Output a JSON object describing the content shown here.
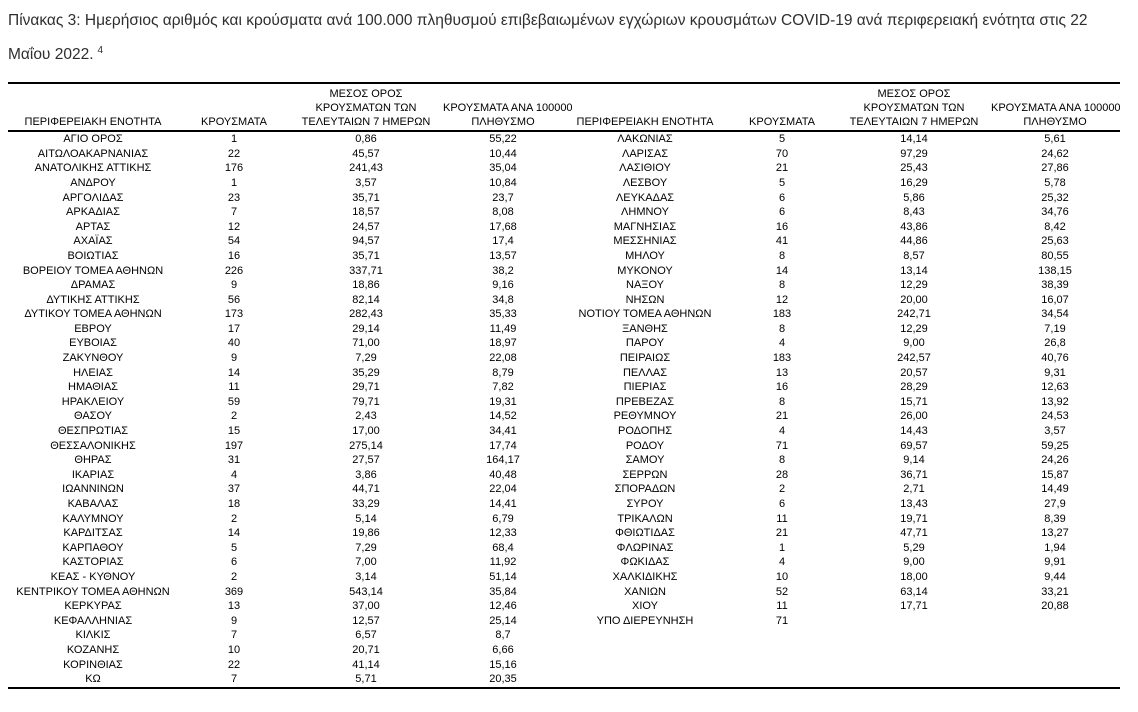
{
  "caption": {
    "text": "Πίνακας 3:  Ημερήσιος αριθμός και κρούσματα ανά 100.000 πληθυσμού επιβεβαιωμένων εγχώριων κρουσμάτων COVID-19 ανά περιφερειακή ενότητα στις 22 Μαΐου 2022.",
    "footnote_ref": "4"
  },
  "colors": {
    "background": "#ffffff",
    "text": "#000000",
    "caption_text": "#2e2e2e",
    "rule": "#000000"
  },
  "table": {
    "header": {
      "columns": [
        {
          "id": "region-left",
          "lines": [
            "ΠΕΡΙΦΕΡΕΙΑΚΗ ΕΝΟΤΗΤΑ"
          ]
        },
        {
          "id": "cases-left",
          "lines": [
            "ΚΡΟΥΣΜΑΤΑ"
          ]
        },
        {
          "id": "avg7-left",
          "lines": [
            "ΜΕΣΟΣ ΟΡΟΣ",
            "ΚΡΟΥΣΜΑΤΩΝ ΤΩΝ",
            "ΤΕΛΕΥΤΑΙΩΝ 7 ΗΜΕΡΩΝ"
          ]
        },
        {
          "id": "per100k-left",
          "lines": [
            "ΚΡΟΥΣΜΑΤΑ ΑΝΑ 100000",
            "ΠΛΗΘΥΣΜΟ"
          ]
        },
        {
          "id": "region-right",
          "lines": [
            "ΠΕΡΙΦΕΡΕΙΑΚΗ ΕΝΟΤΗΤΑ"
          ]
        },
        {
          "id": "cases-right",
          "lines": [
            "ΚΡΟΥΣΜΑΤΑ"
          ]
        },
        {
          "id": "avg7-right",
          "lines": [
            "ΜΕΣΟΣ ΟΡΟΣ",
            "ΚΡΟΥΣΜΑΤΩΝ ΤΩΝ",
            "ΤΕΛΕΥΤΑΙΩΝ 7 ΗΜΕΡΩΝ"
          ]
        },
        {
          "id": "per100k-right",
          "lines": [
            "ΚΡΟΥΣΜΑΤΑ ΑΝΑ 100000",
            "ΠΛΗΘΥΣΜΟ"
          ]
        }
      ]
    },
    "cell_names": [
      "region",
      "cases",
      "avg7",
      "per100k",
      "region",
      "cases",
      "avg7",
      "per100k"
    ],
    "rows_left": [
      [
        "ΑΓΙΟ ΟΡΟΣ",
        "1",
        "0,86",
        "55,22"
      ],
      [
        "ΑΙΤΩΛΟΑΚΑΡΝΑΝΙΑΣ",
        "22",
        "45,57",
        "10,44"
      ],
      [
        "ΑΝΑΤΟΛΙΚΗΣ ΑΤΤΙΚΗΣ",
        "176",
        "241,43",
        "35,04"
      ],
      [
        "ΑΝΔΡΟΥ",
        "1",
        "3,57",
        "10,84"
      ],
      [
        "ΑΡΓΟΛΙΔΑΣ",
        "23",
        "35,71",
        "23,7"
      ],
      [
        "ΑΡΚΑΔΙΑΣ",
        "7",
        "18,57",
        "8,08"
      ],
      [
        "ΑΡΤΑΣ",
        "12",
        "24,57",
        "17,68"
      ],
      [
        "ΑΧΑΪΑΣ",
        "54",
        "94,57",
        "17,4"
      ],
      [
        "ΒΟΙΩΤΙΑΣ",
        "16",
        "35,71",
        "13,57"
      ],
      [
        "ΒΟΡΕΙΟΥ ΤΟΜΕΑ ΑΘΗΝΩΝ",
        "226",
        "337,71",
        "38,2"
      ],
      [
        "ΔΡΑΜΑΣ",
        "9",
        "18,86",
        "9,16"
      ],
      [
        "ΔΥΤΙΚΗΣ ΑΤΤΙΚΗΣ",
        "56",
        "82,14",
        "34,8"
      ],
      [
        "ΔΥΤΙΚΟΥ ΤΟΜΕΑ ΑΘΗΝΩΝ",
        "173",
        "282,43",
        "35,33"
      ],
      [
        "ΕΒΡΟΥ",
        "17",
        "29,14",
        "11,49"
      ],
      [
        "ΕΥΒΟΙΑΣ",
        "40",
        "71,00",
        "18,97"
      ],
      [
        "ΖΑΚΥΝΘΟΥ",
        "9",
        "7,29",
        "22,08"
      ],
      [
        "ΗΛΕΙΑΣ",
        "14",
        "35,29",
        "8,79"
      ],
      [
        "ΗΜΑΘΙΑΣ",
        "11",
        "29,71",
        "7,82"
      ],
      [
        "ΗΡΑΚΛΕΙΟΥ",
        "59",
        "79,71",
        "19,31"
      ],
      [
        "ΘΑΣΟΥ",
        "2",
        "2,43",
        "14,52"
      ],
      [
        "ΘΕΣΠΡΩΤΙΑΣ",
        "15",
        "17,00",
        "34,41"
      ],
      [
        "ΘΕΣΣΑΛΟΝΙΚΗΣ",
        "197",
        "275,14",
        "17,74"
      ],
      [
        "ΘΗΡΑΣ",
        "31",
        "27,57",
        "164,17"
      ],
      [
        "ΙΚΑΡΙΑΣ",
        "4",
        "3,86",
        "40,48"
      ],
      [
        "ΙΩΑΝΝΙΝΩΝ",
        "37",
        "44,71",
        "22,04"
      ],
      [
        "ΚΑΒΑΛΑΣ",
        "18",
        "33,29",
        "14,41"
      ],
      [
        "ΚΑΛΥΜΝΟΥ",
        "2",
        "5,14",
        "6,79"
      ],
      [
        "ΚΑΡΔΙΤΣΑΣ",
        "14",
        "19,86",
        "12,33"
      ],
      [
        "ΚΑΡΠΑΘΟΥ",
        "5",
        "7,29",
        "68,4"
      ],
      [
        "ΚΑΣΤΟΡΙΑΣ",
        "6",
        "7,00",
        "11,92"
      ],
      [
        "ΚΕΑΣ - ΚΥΘΝΟΥ",
        "2",
        "3,14",
        "51,14"
      ],
      [
        "ΚΕΝΤΡΙΚΟΥ ΤΟΜΕΑ ΑΘΗΝΩΝ",
        "369",
        "543,14",
        "35,84"
      ],
      [
        "ΚΕΡΚΥΡΑΣ",
        "13",
        "37,00",
        "12,46"
      ],
      [
        "ΚΕΦΑΛΛΗΝΙΑΣ",
        "9",
        "12,57",
        "25,14"
      ],
      [
        "ΚΙΛΚΙΣ",
        "7",
        "6,57",
        "8,7"
      ],
      [
        "ΚΟΖΑΝΗΣ",
        "10",
        "20,71",
        "6,66"
      ],
      [
        "ΚΟΡΙΝΘΙΑΣ",
        "22",
        "41,14",
        "15,16"
      ],
      [
        "ΚΩ",
        "7",
        "5,71",
        "20,35"
      ]
    ],
    "rows_right": [
      [
        "ΛΑΚΩΝΙΑΣ",
        "5",
        "14,14",
        "5,61"
      ],
      [
        "ΛΑΡΙΣΑΣ",
        "70",
        "97,29",
        "24,62"
      ],
      [
        "ΛΑΣΙΘΙΟΥ",
        "21",
        "25,43",
        "27,86"
      ],
      [
        "ΛΕΣΒΟΥ",
        "5",
        "16,29",
        "5,78"
      ],
      [
        "ΛΕΥΚΑΔΑΣ",
        "6",
        "5,86",
        "25,32"
      ],
      [
        "ΛΗΜΝΟΥ",
        "6",
        "8,43",
        "34,76"
      ],
      [
        "ΜΑΓΝΗΣΙΑΣ",
        "16",
        "43,86",
        "8,42"
      ],
      [
        "ΜΕΣΣΗΝΙΑΣ",
        "41",
        "44,86",
        "25,63"
      ],
      [
        "ΜΗΛΟΥ",
        "8",
        "8,57",
        "80,55"
      ],
      [
        "ΜΥΚΟΝΟΥ",
        "14",
        "13,14",
        "138,15"
      ],
      [
        "ΝΑΞΟΥ",
        "8",
        "12,29",
        "38,39"
      ],
      [
        "ΝΗΣΩΝ",
        "12",
        "20,00",
        "16,07"
      ],
      [
        "ΝΟΤΙΟΥ ΤΟΜΕΑ ΑΘΗΝΩΝ",
        "183",
        "242,71",
        "34,54"
      ],
      [
        "ΞΑΝΘΗΣ",
        "8",
        "12,29",
        "7,19"
      ],
      [
        "ΠΑΡΟΥ",
        "4",
        "9,00",
        "26,8"
      ],
      [
        "ΠΕΙΡΑΙΩΣ",
        "183",
        "242,57",
        "40,76"
      ],
      [
        "ΠΕΛΛΑΣ",
        "13",
        "20,57",
        "9,31"
      ],
      [
        "ΠΙΕΡΙΑΣ",
        "16",
        "28,29",
        "12,63"
      ],
      [
        "ΠΡΕΒΕΖΑΣ",
        "8",
        "15,71",
        "13,92"
      ],
      [
        "ΡΕΘΥΜΝΟΥ",
        "21",
        "26,00",
        "24,53"
      ],
      [
        "ΡΟΔΟΠΗΣ",
        "4",
        "14,43",
        "3,57"
      ],
      [
        "ΡΟΔΟΥ",
        "71",
        "69,57",
        "59,25"
      ],
      [
        "ΣΑΜΟΥ",
        "8",
        "9,14",
        "24,26"
      ],
      [
        "ΣΕΡΡΩΝ",
        "28",
        "36,71",
        "15,87"
      ],
      [
        "ΣΠΟΡΑΔΩΝ",
        "2",
        "2,71",
        "14,49"
      ],
      [
        "ΣΥΡΟΥ",
        "6",
        "13,43",
        "27,9"
      ],
      [
        "ΤΡΙΚΑΛΩΝ",
        "11",
        "19,71",
        "8,39"
      ],
      [
        "ΦΘΙΩΤΙΔΑΣ",
        "21",
        "47,71",
        "13,27"
      ],
      [
        "ΦΛΩΡΙΝΑΣ",
        "1",
        "5,29",
        "1,94"
      ],
      [
        "ΦΩΚΙΔΑΣ",
        "4",
        "9,00",
        "9,91"
      ],
      [
        "ΧΑΛΚΙΔΙΚΗΣ",
        "10",
        "18,00",
        "9,44"
      ],
      [
        "ΧΑΝΙΩΝ",
        "52",
        "63,14",
        "33,21"
      ],
      [
        "ΧΙΟΥ",
        "11",
        "17,71",
        "20,88"
      ],
      [
        "ΥΠΟ ΔΙΕΡΕΥΝΗΣΗ",
        "71",
        "",
        ""
      ]
    ]
  }
}
